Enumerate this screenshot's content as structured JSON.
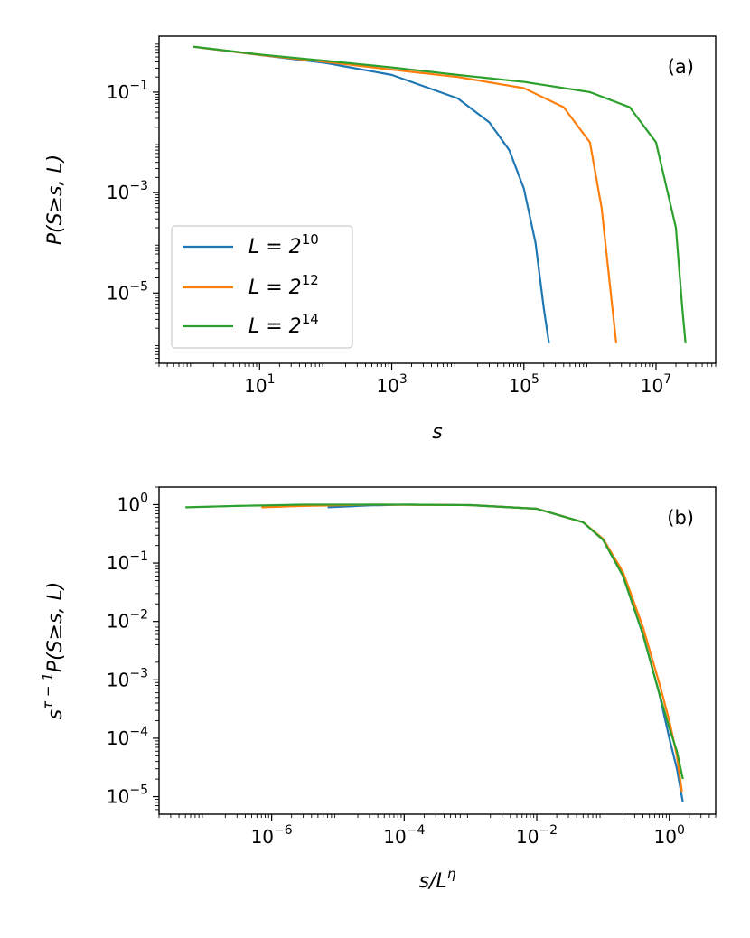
{
  "chart_data": [
    {
      "type": "line",
      "tag": "(a)",
      "xlabel": "s",
      "ylabel": "P(S≥s, L)",
      "xscale": "log",
      "yscale": "log",
      "xlim": [
        0.3,
        80000000.0
      ],
      "ylim": [
        4e-07,
        1.3
      ],
      "xticks": [
        {
          "value": 10,
          "base": "10",
          "exp": "1"
        },
        {
          "value": 1000,
          "base": "10",
          "exp": "3"
        },
        {
          "value": 100000,
          "base": "10",
          "exp": "5"
        },
        {
          "value": 10000000,
          "base": "10",
          "exp": "7"
        }
      ],
      "yticks": [
        {
          "value": 0.1,
          "base": "10",
          "exp": "−1"
        },
        {
          "value": 0.001,
          "base": "10",
          "exp": "−3"
        },
        {
          "value": 1e-05,
          "base": "10",
          "exp": "−5"
        }
      ],
      "legend": {
        "placement": "lower-left"
      },
      "series": [
        {
          "name": "L = 2^10",
          "label_main": "L = 2",
          "label_exp": "10",
          "color": "#1f77b4",
          "points": [
            [
              1,
              0.8
            ],
            [
              10,
              0.55
            ],
            [
              100,
              0.38
            ],
            [
              1000,
              0.22
            ],
            [
              10000,
              0.075
            ],
            [
              30000,
              0.025
            ],
            [
              60000,
              0.007
            ],
            [
              100000,
              0.0012
            ],
            [
              150000,
              0.0001
            ],
            [
              200000,
              5e-06
            ],
            [
              240000,
              1e-06
            ]
          ]
        },
        {
          "name": "L = 2^12",
          "label_main": "L = 2",
          "label_exp": "12",
          "color": "#ff7f0e",
          "points": [
            [
              1,
              0.8
            ],
            [
              10,
              0.55
            ],
            [
              100,
              0.4
            ],
            [
              1000,
              0.28
            ],
            [
              10000,
              0.2
            ],
            [
              100000,
              0.12
            ],
            [
              400000,
              0.05
            ],
            [
              1000000,
              0.01
            ],
            [
              1500000,
              0.0005
            ],
            [
              2000000,
              1.5e-05
            ],
            [
              2500000,
              1e-06
            ]
          ]
        },
        {
          "name": "L = 2^14",
          "label_main": "L = 2",
          "label_exp": "14",
          "color": "#2ca02c",
          "points": [
            [
              1,
              0.8
            ],
            [
              10,
              0.56
            ],
            [
              100,
              0.42
            ],
            [
              1000,
              0.31
            ],
            [
              10000,
              0.22
            ],
            [
              100000,
              0.16
            ],
            [
              1000000,
              0.1
            ],
            [
              4000000,
              0.05
            ],
            [
              10000000,
              0.01
            ],
            [
              20000000,
              0.0002
            ],
            [
              25000000,
              5e-06
            ],
            [
              28000000,
              1e-06
            ]
          ]
        }
      ]
    },
    {
      "type": "line",
      "tag": "(b)",
      "xlabel": "s/L^η",
      "ylabel": "s^(τ−1) P(S≥s, L)",
      "xscale": "log",
      "yscale": "log",
      "xlim": [
        2e-08,
        5
      ],
      "ylim": [
        5e-06,
        2
      ],
      "xticks": [
        {
          "value": 1e-06,
          "base": "10",
          "exp": "−6"
        },
        {
          "value": 0.0001,
          "base": "10",
          "exp": "−4"
        },
        {
          "value": 0.01,
          "base": "10",
          "exp": "−2"
        },
        {
          "value": 1,
          "base": "10",
          "exp": "0"
        }
      ],
      "yticks": [
        {
          "value": 1,
          "base": "10",
          "exp": "0"
        },
        {
          "value": 0.1,
          "base": "10",
          "exp": "−1"
        },
        {
          "value": 0.01,
          "base": "10",
          "exp": "−2"
        },
        {
          "value": 0.001,
          "base": "10",
          "exp": "−3"
        },
        {
          "value": 0.0001,
          "base": "10",
          "exp": "−4"
        },
        {
          "value": 1e-05,
          "base": "10",
          "exp": "−5"
        }
      ],
      "series": [
        {
          "name": "L = 2^10",
          "color": "#1f77b4",
          "points": [
            [
              7e-06,
              0.9
            ],
            [
              3e-05,
              0.97
            ],
            [
              0.0001,
              1.0
            ],
            [
              0.001,
              0.98
            ],
            [
              0.01,
              0.85
            ],
            [
              0.05,
              0.5
            ],
            [
              0.1,
              0.25
            ],
            [
              0.2,
              0.06
            ],
            [
              0.4,
              0.006
            ],
            [
              0.7,
              0.0006
            ],
            [
              1.0,
              0.0001
            ],
            [
              1.3,
              3e-05
            ],
            [
              1.6,
              8e-06
            ]
          ]
        },
        {
          "name": "L = 2^12",
          "color": "#ff7f0e",
          "points": [
            [
              7e-07,
              0.9
            ],
            [
              3e-06,
              0.95
            ],
            [
              3e-05,
              1.0
            ],
            [
              0.001,
              0.98
            ],
            [
              0.01,
              0.85
            ],
            [
              0.05,
              0.5
            ],
            [
              0.1,
              0.26
            ],
            [
              0.2,
              0.07
            ],
            [
              0.4,
              0.008
            ],
            [
              0.7,
              0.0009
            ],
            [
              1.0,
              0.0002
            ],
            [
              1.3,
              5e-05
            ],
            [
              1.55,
              1.2e-05
            ]
          ]
        },
        {
          "name": "L = 2^14",
          "color": "#2ca02c",
          "points": [
            [
              5e-08,
              0.9
            ],
            [
              3e-07,
              0.95
            ],
            [
              3e-06,
              1.0
            ],
            [
              0.0001,
              1.0
            ],
            [
              0.001,
              0.98
            ],
            [
              0.01,
              0.85
            ],
            [
              0.05,
              0.5
            ],
            [
              0.1,
              0.25
            ],
            [
              0.2,
              0.06
            ],
            [
              0.4,
              0.006
            ],
            [
              0.7,
              0.0006
            ],
            [
              1.0,
              0.00015
            ],
            [
              1.3,
              6e-05
            ],
            [
              1.6,
              2e-05
            ]
          ]
        }
      ]
    }
  ]
}
